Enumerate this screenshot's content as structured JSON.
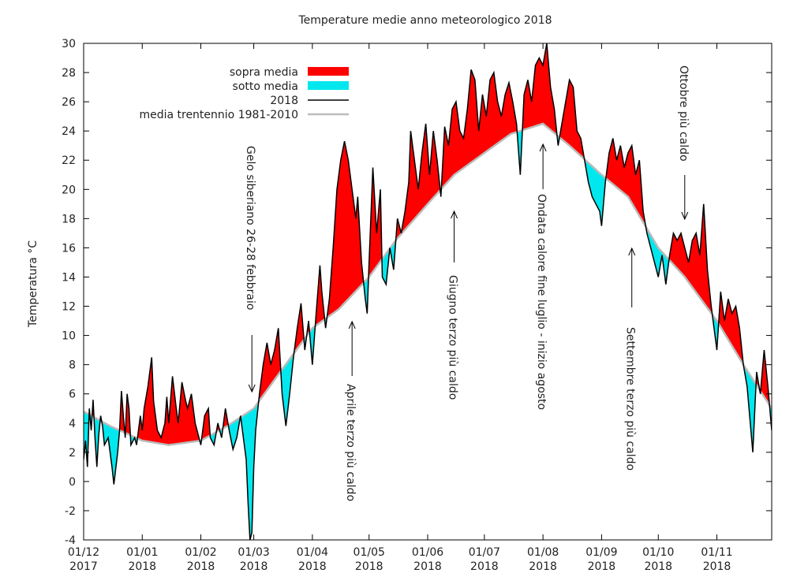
{
  "chart_data": {
    "type": "area",
    "title": "Temperature medie anno meteorologico 2018",
    "xlabel": "",
    "ylabel": "Temperatura °C",
    "ylim": [
      -4,
      30
    ],
    "yticks": [
      "-4",
      "-2",
      "0",
      "2",
      "4",
      "6",
      "8",
      "10",
      "12",
      "14",
      "16",
      "18",
      "20",
      "22",
      "24",
      "26",
      "28",
      "30"
    ],
    "xlim": [
      "2017-12-01",
      "2018-11-30"
    ],
    "xticks": [
      {
        "date": "2017-12-01",
        "line1": "01/12",
        "line2": "2017"
      },
      {
        "date": "2018-01-01",
        "line1": "01/01",
        "line2": "2018"
      },
      {
        "date": "2018-02-01",
        "line1": "01/02",
        "line2": "2018"
      },
      {
        "date": "2018-03-01",
        "line1": "01/03",
        "line2": "2018"
      },
      {
        "date": "2018-04-01",
        "line1": "01/04",
        "line2": "2018"
      },
      {
        "date": "2018-05-01",
        "line1": "01/05",
        "line2": "2018"
      },
      {
        "date": "2018-06-01",
        "line1": "01/06",
        "line2": "2018"
      },
      {
        "date": "2018-07-01",
        "line1": "01/07",
        "line2": "2018"
      },
      {
        "date": "2018-08-01",
        "line1": "01/08",
        "line2": "2018"
      },
      {
        "date": "2018-09-01",
        "line1": "01/09",
        "line2": "2018"
      },
      {
        "date": "2018-10-01",
        "line1": "01/10",
        "line2": "2018"
      },
      {
        "date": "2018-11-01",
        "line1": "01/11",
        "line2": "2018"
      }
    ],
    "legend_position": "top-left",
    "legend": [
      {
        "label": "sopra media",
        "kind": "fill",
        "color": "#ff0000"
      },
      {
        "label": "sotto media",
        "kind": "fill",
        "color": "#00e8ee"
      },
      {
        "label": "2018",
        "kind": "line",
        "color": "#000000"
      },
      {
        "label": "media trentennio 1981-2010",
        "kind": "line",
        "color": "#bbbbbb"
      }
    ],
    "colors": {
      "above": "#ff0000",
      "below": "#00e8ee",
      "year": "#000000",
      "normal": "#bbbbbb"
    },
    "series": [
      {
        "name": "2018",
        "points": [
          [
            "2017-12-01",
            1.5
          ],
          [
            "2017-12-02",
            2.8
          ],
          [
            "2017-12-03",
            1.0
          ],
          [
            "2017-12-04",
            5.0
          ],
          [
            "2017-12-05",
            3.5
          ],
          [
            "2017-12-06",
            5.6
          ],
          [
            "2017-12-07",
            3.0
          ],
          [
            "2017-12-08",
            1.0
          ],
          [
            "2017-12-09",
            3.2
          ],
          [
            "2017-12-10",
            4.5
          ],
          [
            "2017-12-11",
            3.8
          ],
          [
            "2017-12-12",
            2.5
          ],
          [
            "2017-12-14",
            3.0
          ],
          [
            "2017-12-16",
            1.0
          ],
          [
            "2017-12-17",
            -0.2
          ],
          [
            "2017-12-19",
            2.0
          ],
          [
            "2017-12-20",
            3.5
          ],
          [
            "2017-12-21",
            6.2
          ],
          [
            "2017-12-22",
            4.5
          ],
          [
            "2017-12-23",
            3.0
          ],
          [
            "2017-12-24",
            6.0
          ],
          [
            "2017-12-25",
            5.0
          ],
          [
            "2017-12-26",
            2.5
          ],
          [
            "2017-12-28",
            3.0
          ],
          [
            "2017-12-29",
            2.5
          ],
          [
            "2017-12-31",
            4.5
          ],
          [
            "2018-01-01",
            3.5
          ],
          [
            "2018-01-02",
            5.0
          ],
          [
            "2018-01-04",
            6.5
          ],
          [
            "2018-01-05",
            7.5
          ],
          [
            "2018-01-06",
            8.5
          ],
          [
            "2018-01-07",
            5.5
          ],
          [
            "2018-01-09",
            3.5
          ],
          [
            "2018-01-11",
            3.0
          ],
          [
            "2018-01-13",
            4.0
          ],
          [
            "2018-01-14",
            5.8
          ],
          [
            "2018-01-15",
            4.0
          ],
          [
            "2018-01-17",
            7.2
          ],
          [
            "2018-01-19",
            5.0
          ],
          [
            "2018-01-20",
            4.0
          ],
          [
            "2018-01-22",
            6.8
          ],
          [
            "2018-01-24",
            5.5
          ],
          [
            "2018-01-25",
            5.0
          ],
          [
            "2018-01-27",
            6.0
          ],
          [
            "2018-01-29",
            4.0
          ],
          [
            "2018-01-31",
            3.0
          ],
          [
            "2018-02-01",
            2.5
          ],
          [
            "2018-02-03",
            4.5
          ],
          [
            "2018-02-05",
            5.0
          ],
          [
            "2018-02-06",
            3.0
          ],
          [
            "2018-02-08",
            2.5
          ],
          [
            "2018-02-10",
            4.0
          ],
          [
            "2018-02-12",
            3.0
          ],
          [
            "2018-02-14",
            5.0
          ],
          [
            "2018-02-16",
            3.5
          ],
          [
            "2018-02-18",
            2.2
          ],
          [
            "2018-02-20",
            3.0
          ],
          [
            "2018-02-22",
            4.5
          ],
          [
            "2018-02-24",
            2.5
          ],
          [
            "2018-02-25",
            1.5
          ],
          [
            "2018-02-26",
            -1.5
          ],
          [
            "2018-02-27",
            -4.0
          ],
          [
            "2018-02-28",
            -3.5
          ],
          [
            "2018-03-01",
            1.0
          ],
          [
            "2018-03-02",
            3.5
          ],
          [
            "2018-03-04",
            6.0
          ],
          [
            "2018-03-06",
            8.0
          ],
          [
            "2018-03-08",
            9.5
          ],
          [
            "2018-03-10",
            8.0
          ],
          [
            "2018-03-12",
            9.0
          ],
          [
            "2018-03-14",
            10.5
          ],
          [
            "2018-03-16",
            6.0
          ],
          [
            "2018-03-18",
            3.8
          ],
          [
            "2018-03-20",
            6.0
          ],
          [
            "2018-03-22",
            8.5
          ],
          [
            "2018-03-24",
            10.5
          ],
          [
            "2018-03-26",
            12.2
          ],
          [
            "2018-03-28",
            9.0
          ],
          [
            "2018-03-30",
            11.0
          ],
          [
            "2018-04-01",
            8.0
          ],
          [
            "2018-04-03",
            11.5
          ],
          [
            "2018-04-05",
            14.8
          ],
          [
            "2018-04-06",
            13.0
          ],
          [
            "2018-04-08",
            10.5
          ],
          [
            "2018-04-10",
            12.5
          ],
          [
            "2018-04-12",
            16.0
          ],
          [
            "2018-04-14",
            20.0
          ],
          [
            "2018-04-16",
            22.0
          ],
          [
            "2018-04-18",
            23.3
          ],
          [
            "2018-04-20",
            22.0
          ],
          [
            "2018-04-22",
            20.0
          ],
          [
            "2018-04-24",
            18.0
          ],
          [
            "2018-04-25",
            19.5
          ],
          [
            "2018-04-27",
            15.0
          ],
          [
            "2018-04-29",
            12.5
          ],
          [
            "2018-04-30",
            11.5
          ],
          [
            "2018-05-01",
            15.0
          ],
          [
            "2018-05-03",
            21.5
          ],
          [
            "2018-05-05",
            17.0
          ],
          [
            "2018-05-07",
            20.0
          ],
          [
            "2018-05-08",
            14.0
          ],
          [
            "2018-05-10",
            13.5
          ],
          [
            "2018-05-12",
            16.0
          ],
          [
            "2018-05-14",
            14.5
          ],
          [
            "2018-05-16",
            18.0
          ],
          [
            "2018-05-18",
            17.0
          ],
          [
            "2018-05-20",
            18.5
          ],
          [
            "2018-05-22",
            20.5
          ],
          [
            "2018-05-23",
            24.0
          ],
          [
            "2018-05-25",
            22.0
          ],
          [
            "2018-05-27",
            20.0
          ],
          [
            "2018-05-29",
            22.5
          ],
          [
            "2018-05-31",
            24.5
          ],
          [
            "2018-06-02",
            21.0
          ],
          [
            "2018-06-04",
            24.0
          ],
          [
            "2018-06-06",
            22.0
          ],
          [
            "2018-06-08",
            19.5
          ],
          [
            "2018-06-10",
            24.3
          ],
          [
            "2018-06-12",
            23.0
          ],
          [
            "2018-06-14",
            25.5
          ],
          [
            "2018-06-16",
            26.0
          ],
          [
            "2018-06-18",
            24.0
          ],
          [
            "2018-06-20",
            23.5
          ],
          [
            "2018-06-22",
            25.5
          ],
          [
            "2018-06-24",
            28.2
          ],
          [
            "2018-06-26",
            27.5
          ],
          [
            "2018-06-28",
            24.0
          ],
          [
            "2018-06-30",
            26.5
          ],
          [
            "2018-07-02",
            25.0
          ],
          [
            "2018-07-04",
            27.5
          ],
          [
            "2018-07-06",
            28.0
          ],
          [
            "2018-07-08",
            26.0
          ],
          [
            "2018-07-10",
            25.0
          ],
          [
            "2018-07-12",
            26.5
          ],
          [
            "2018-07-14",
            27.3
          ],
          [
            "2018-07-16",
            26.0
          ],
          [
            "2018-07-18",
            24.5
          ],
          [
            "2018-07-20",
            21.0
          ],
          [
            "2018-07-22",
            26.5
          ],
          [
            "2018-07-24",
            27.5
          ],
          [
            "2018-07-26",
            26.0
          ],
          [
            "2018-07-28",
            28.5
          ],
          [
            "2018-07-30",
            29.0
          ],
          [
            "2018-08-01",
            28.5
          ],
          [
            "2018-08-03",
            30.0
          ],
          [
            "2018-08-05",
            27.0
          ],
          [
            "2018-08-07",
            25.5
          ],
          [
            "2018-08-09",
            23.0
          ],
          [
            "2018-08-11",
            24.5
          ],
          [
            "2018-08-13",
            26.0
          ],
          [
            "2018-08-15",
            27.5
          ],
          [
            "2018-08-17",
            27.0
          ],
          [
            "2018-08-19",
            24.0
          ],
          [
            "2018-08-21",
            23.5
          ],
          [
            "2018-08-23",
            22.0
          ],
          [
            "2018-08-25",
            20.5
          ],
          [
            "2018-08-27",
            19.5
          ],
          [
            "2018-08-29",
            19.0
          ],
          [
            "2018-08-31",
            18.5
          ],
          [
            "2018-09-01",
            17.5
          ],
          [
            "2018-09-03",
            20.5
          ],
          [
            "2018-09-05",
            22.5
          ],
          [
            "2018-09-07",
            23.5
          ],
          [
            "2018-09-09",
            22.0
          ],
          [
            "2018-09-11",
            23.0
          ],
          [
            "2018-09-13",
            21.5
          ],
          [
            "2018-09-15",
            22.5
          ],
          [
            "2018-09-17",
            23.0
          ],
          [
            "2018-09-19",
            21.0
          ],
          [
            "2018-09-21",
            22.0
          ],
          [
            "2018-09-23",
            18.5
          ],
          [
            "2018-09-25",
            17.0
          ],
          [
            "2018-09-27",
            16.0
          ],
          [
            "2018-09-29",
            15.0
          ],
          [
            "2018-10-01",
            14.0
          ],
          [
            "2018-10-03",
            15.5
          ],
          [
            "2018-10-05",
            13.5
          ],
          [
            "2018-10-07",
            15.5
          ],
          [
            "2018-10-09",
            17.0
          ],
          [
            "2018-10-11",
            16.5
          ],
          [
            "2018-10-13",
            17.0
          ],
          [
            "2018-10-15",
            16.0
          ],
          [
            "2018-10-17",
            15.0
          ],
          [
            "2018-10-19",
            16.5
          ],
          [
            "2018-10-21",
            17.0
          ],
          [
            "2018-10-23",
            15.5
          ],
          [
            "2018-10-25",
            19.0
          ],
          [
            "2018-10-27",
            14.5
          ],
          [
            "2018-10-29",
            12.0
          ],
          [
            "2018-10-31",
            10.0
          ],
          [
            "2018-11-01",
            9.0
          ],
          [
            "2018-11-03",
            13.0
          ],
          [
            "2018-11-05",
            11.0
          ],
          [
            "2018-11-07",
            12.5
          ],
          [
            "2018-11-09",
            11.5
          ],
          [
            "2018-11-11",
            12.0
          ],
          [
            "2018-11-13",
            10.5
          ],
          [
            "2018-11-15",
            8.0
          ],
          [
            "2018-11-17",
            6.5
          ],
          [
            "2018-11-19",
            3.5
          ],
          [
            "2018-11-20",
            2.0
          ],
          [
            "2018-11-22",
            7.5
          ],
          [
            "2018-11-24",
            6.0
          ],
          [
            "2018-11-26",
            9.0
          ],
          [
            "2018-11-28",
            6.5
          ],
          [
            "2018-11-30",
            3.5
          ]
        ]
      },
      {
        "name": "media trentennio 1981-2010",
        "points": [
          [
            "2017-12-01",
            4.8
          ],
          [
            "2017-12-15",
            3.8
          ],
          [
            "2018-01-01",
            2.8
          ],
          [
            "2018-01-15",
            2.5
          ],
          [
            "2018-02-01",
            2.8
          ],
          [
            "2018-02-15",
            3.8
          ],
          [
            "2018-03-01",
            5.0
          ],
          [
            "2018-03-15",
            7.5
          ],
          [
            "2018-04-01",
            10.5
          ],
          [
            "2018-04-15",
            11.8
          ],
          [
            "2018-05-01",
            14.0
          ],
          [
            "2018-05-15",
            16.5
          ],
          [
            "2018-06-01",
            19.0
          ],
          [
            "2018-06-15",
            21.0
          ],
          [
            "2018-07-01",
            22.5
          ],
          [
            "2018-07-15",
            23.8
          ],
          [
            "2018-08-01",
            24.5
          ],
          [
            "2018-08-15",
            23.0
          ],
          [
            "2018-09-01",
            21.0
          ],
          [
            "2018-09-15",
            19.5
          ],
          [
            "2018-10-01",
            16.0
          ],
          [
            "2018-10-15",
            14.0
          ],
          [
            "2018-11-01",
            11.0
          ],
          [
            "2018-11-15",
            8.0
          ],
          [
            "2018-11-30",
            5.0
          ]
        ]
      }
    ],
    "annotations": [
      {
        "text": "Gelo siberiano 26-28 febbraio",
        "date": "2018-02-28",
        "y": 5.5
      },
      {
        "text": "Aprile terzo più caldo",
        "date": "2018-04-22",
        "y": 11.0
      },
      {
        "text": "Giugno terzo più caldo",
        "date": "2018-06-15",
        "y": 18.5
      },
      {
        "text": "Ondata calore fine luglio - inizio agosto",
        "date": "2018-08-01",
        "y": 23.5
      },
      {
        "text": "Settembre terzo più caldo",
        "date": "2018-09-17",
        "y": 16.0
      },
      {
        "text": "Ottobre più caldo",
        "date": "2018-10-15",
        "y": 17.5
      }
    ]
  }
}
